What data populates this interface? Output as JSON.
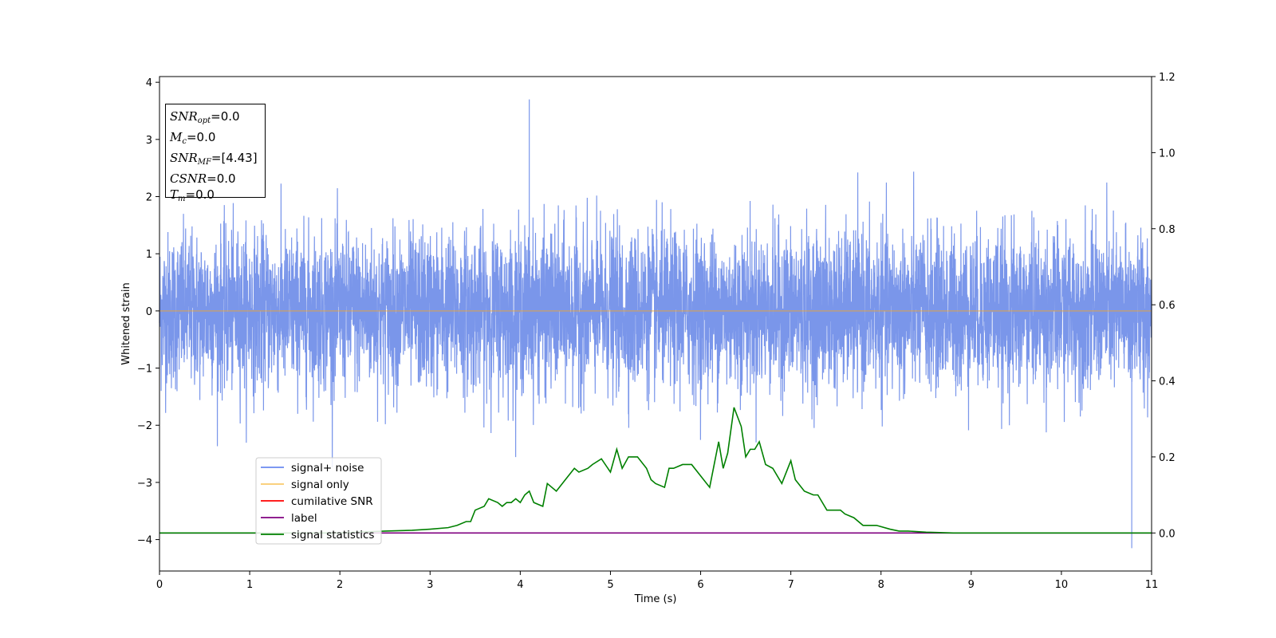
{
  "chart_data": {
    "type": "line",
    "xlabel": "Time (s)",
    "ylabel": "Whitened strain",
    "xlim": [
      0,
      11
    ],
    "ylim_left": [
      -4.55,
      4.1
    ],
    "ylim_right": [
      -0.1,
      1.2
    ],
    "x_ticks": [
      "0",
      "1",
      "2",
      "3",
      "4",
      "5",
      "6",
      "7",
      "8",
      "9",
      "10",
      "11"
    ],
    "y_ticks_left": [
      "−4",
      "−3",
      "−2",
      "−1",
      "0",
      "1",
      "2",
      "3",
      "4"
    ],
    "y_ticks_right": [
      "0.0",
      "0.2",
      "0.4",
      "0.6",
      "0.8",
      "1.0",
      "1.2"
    ],
    "legend_position": "lower-left",
    "colors": {
      "signal_noise": "#4169e1",
      "signal_only": "#f5a623",
      "cumulative_snr": "#ff0000",
      "label": "#800080",
      "signal_statistics": "#008000"
    },
    "series": [
      {
        "name": "signal+ noise",
        "axis": "left",
        "description_values": {
          "typical_range": [
            -1.5,
            1.5
          ],
          "max_peak": 3.7,
          "max_peak_time": 4.1,
          "min_peak": -4.15,
          "min_peak_time": 10.78
        }
      },
      {
        "name": "signal only",
        "axis": "left",
        "x": [
          0,
          11
        ],
        "values": [
          0,
          0
        ]
      },
      {
        "name": "cumilative SNR",
        "axis": "left",
        "x": [],
        "values": []
      },
      {
        "name": "label",
        "axis": "right",
        "x": [
          0,
          11
        ],
        "values": [
          0,
          0
        ]
      },
      {
        "name": "signal statistics",
        "axis": "right",
        "x": [
          0,
          1,
          2,
          2.5,
          2.8,
          3.0,
          3.2,
          3.3,
          3.4,
          3.45,
          3.5,
          3.6,
          3.65,
          3.75,
          3.8,
          3.85,
          3.9,
          3.95,
          4.0,
          4.05,
          4.1,
          4.15,
          4.25,
          4.3,
          4.4,
          4.5,
          4.6,
          4.65,
          4.75,
          4.8,
          4.9,
          5.0,
          5.07,
          5.13,
          5.2,
          5.3,
          5.4,
          5.45,
          5.5,
          5.6,
          5.65,
          5.7,
          5.8,
          5.9,
          6.0,
          6.1,
          6.2,
          6.25,
          6.3,
          6.37,
          6.45,
          6.5,
          6.55,
          6.6,
          6.65,
          6.72,
          6.8,
          6.9,
          7.0,
          7.05,
          7.15,
          7.25,
          7.3,
          7.4,
          7.5,
          7.55,
          7.6,
          7.7,
          7.8,
          7.85,
          7.95,
          8.1,
          8.2,
          8.3,
          8.5,
          8.8,
          9.0,
          10.0,
          11.0
        ],
        "values": [
          0.0,
          0.0,
          0.0,
          0.005,
          0.007,
          0.01,
          0.014,
          0.02,
          0.03,
          0.03,
          0.06,
          0.07,
          0.09,
          0.08,
          0.07,
          0.08,
          0.08,
          0.09,
          0.08,
          0.1,
          0.11,
          0.08,
          0.07,
          0.13,
          0.11,
          0.14,
          0.17,
          0.16,
          0.17,
          0.18,
          0.195,
          0.16,
          0.22,
          0.17,
          0.2,
          0.2,
          0.17,
          0.14,
          0.13,
          0.12,
          0.17,
          0.17,
          0.18,
          0.18,
          0.15,
          0.12,
          0.24,
          0.17,
          0.21,
          0.33,
          0.28,
          0.2,
          0.22,
          0.22,
          0.24,
          0.18,
          0.17,
          0.13,
          0.19,
          0.14,
          0.11,
          0.1,
          0.1,
          0.06,
          0.06,
          0.06,
          0.05,
          0.04,
          0.02,
          0.02,
          0.02,
          0.01,
          0.005,
          0.005,
          0.002,
          0.0,
          0.0,
          0.0,
          0.0
        ]
      }
    ]
  },
  "legend": [
    {
      "label": "signal+ noise",
      "color": "#6a8af0"
    },
    {
      "label": "signal only",
      "color": "#f9c96b"
    },
    {
      "label": "cumilative SNR",
      "color": "#ff0000"
    },
    {
      "label": "label",
      "color": "#800080"
    },
    {
      "label": "signal statistics",
      "color": "#008000"
    }
  ],
  "stats_box": {
    "snr_opt_name": "SNR",
    "snr_opt_sub": "opt",
    "snr_opt_value": "=0.0",
    "mc_name": "M",
    "mc_sub": "c",
    "mc_value": "=0.0",
    "snr_mf_name": "SNR",
    "snr_mf_sub": "MF",
    "snr_mf_value": "=[4.43]",
    "csnr_name": "CSNR",
    "csnr_value": "=0.0",
    "tm_name": "T",
    "tm_sub": "m",
    "tm_value": "=0.0"
  }
}
